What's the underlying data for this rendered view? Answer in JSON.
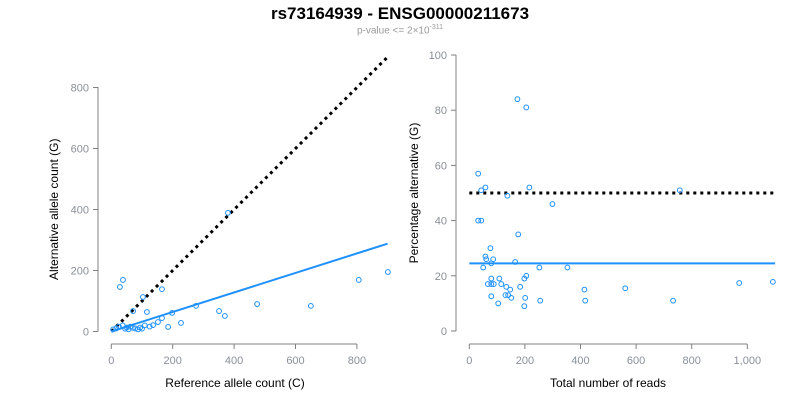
{
  "title": "rs73164939 - ENSG00000211673",
  "subtitle": {
    "prefix": "p-value <= 2×10",
    "exponent": "-311"
  },
  "colors": {
    "points": "#1E90FF",
    "fit": "#1E90FF",
    "reference": "#000000",
    "axis": "#808080"
  },
  "chart_data": [
    {
      "type": "scatter",
      "xlabel": "Reference allele count (C)",
      "ylabel": "Alternative allele count (G)",
      "xlim": [
        0,
        900
      ],
      "ylim": [
        0,
        800
      ],
      "xticks": [
        "0",
        "200",
        "400",
        "600",
        "800"
      ],
      "yticks": [
        "0",
        "200",
        "400",
        "600",
        "800"
      ],
      "reference_line": {
        "style": "dotted",
        "slope": 1,
        "intercept": 0,
        "x_range": [
          0,
          900
        ]
      },
      "fit_line": {
        "slope": 0.32,
        "intercept": 0,
        "x_range": [
          0,
          900
        ]
      },
      "points": [
        [
          28,
          146
        ],
        [
          38,
          169
        ],
        [
          103,
          113
        ],
        [
          165,
          139
        ],
        [
          71,
          67
        ],
        [
          116,
          64
        ],
        [
          198,
          61
        ],
        [
          276,
          84
        ],
        [
          351,
          67
        ],
        [
          370,
          51
        ],
        [
          475,
          90
        ],
        [
          650,
          84
        ],
        [
          806,
          169
        ],
        [
          901,
          195
        ],
        [
          227,
          28
        ],
        [
          165,
          44
        ],
        [
          152,
          31
        ],
        [
          185,
          15
        ],
        [
          136,
          21
        ],
        [
          380,
          389
        ],
        [
          16,
          10
        ],
        [
          25,
          16
        ],
        [
          37,
          20
        ],
        [
          50,
          13
        ],
        [
          62,
          16
        ],
        [
          78,
          10
        ],
        [
          94,
          13
        ],
        [
          109,
          20
        ],
        [
          125,
          16
        ],
        [
          56,
          7
        ],
        [
          87,
          7
        ],
        [
          6,
          7
        ],
        [
          45,
          9
        ],
        [
          70,
          12
        ],
        [
          100,
          9
        ]
      ]
    },
    {
      "type": "scatter",
      "xlabel": "Total number of reads",
      "ylabel": "Percentage alternative (G)",
      "xlim": [
        0,
        1100
      ],
      "ylim": [
        0,
        100
      ],
      "xticks": [
        "0",
        "200",
        "400",
        "600",
        "800",
        "1,000"
      ],
      "yticks": [
        "0",
        "20",
        "40",
        "60",
        "80",
        "100"
      ],
      "reference_line": {
        "style": "dotted",
        "y": 50
      },
      "fit_line": {
        "y": 24.5
      },
      "points": [
        [
          173,
          84
        ],
        [
          205,
          81
        ],
        [
          32,
          57
        ],
        [
          43,
          51
        ],
        [
          58,
          52
        ],
        [
          216,
          52
        ],
        [
          137,
          49
        ],
        [
          299,
          46
        ],
        [
          32,
          40
        ],
        [
          43,
          40
        ],
        [
          176,
          35
        ],
        [
          76,
          30
        ],
        [
          58,
          27
        ],
        [
          61,
          26
        ],
        [
          86,
          26
        ],
        [
          79,
          24.5
        ],
        [
          50,
          23
        ],
        [
          165,
          25
        ],
        [
          252,
          23
        ],
        [
          353,
          23
        ],
        [
          79,
          19
        ],
        [
          108,
          19
        ],
        [
          205,
          20
        ],
        [
          198,
          19
        ],
        [
          67,
          17
        ],
        [
          79,
          17
        ],
        [
          88,
          17
        ],
        [
          115,
          17
        ],
        [
          183,
          16
        ],
        [
          133,
          16
        ],
        [
          147,
          15
        ],
        [
          130,
          13
        ],
        [
          140,
          13
        ],
        [
          79,
          12.6
        ],
        [
          151,
          12
        ],
        [
          201,
          12
        ],
        [
          255,
          11
        ],
        [
          104,
          10
        ],
        [
          198,
          9
        ],
        [
          414,
          15
        ],
        [
          417,
          11
        ],
        [
          561,
          15.5
        ],
        [
          733,
          11
        ],
        [
          757,
          51
        ],
        [
          971,
          17.4
        ],
        [
          1092,
          17.8
        ]
      ]
    }
  ]
}
